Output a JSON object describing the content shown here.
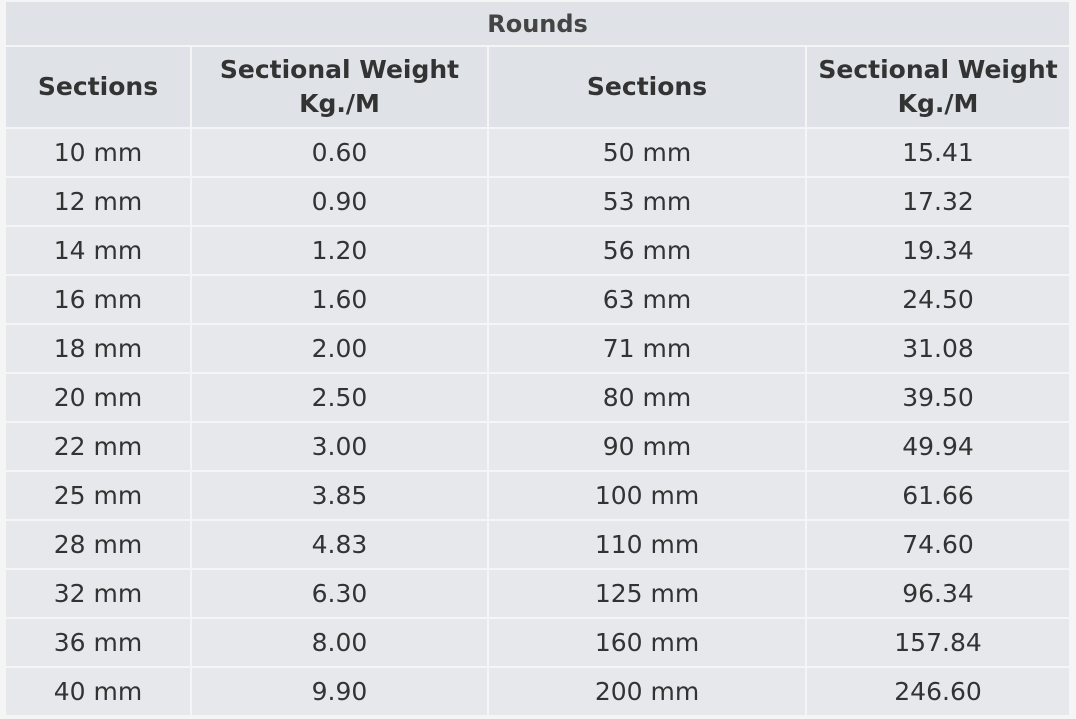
{
  "table": {
    "title": "Rounds",
    "headers": [
      {
        "line1": "Sections",
        "line2": ""
      },
      {
        "line1": "Sectional Weight",
        "line2": "Kg./M"
      },
      {
        "line1": "Sections",
        "line2": ""
      },
      {
        "line1": "Sectional Weight",
        "line2": "Kg./M"
      }
    ],
    "rows": [
      [
        "10 mm",
        "0.60",
        "50 mm",
        "15.41"
      ],
      [
        "12 mm",
        "0.90",
        "53 mm",
        "17.32"
      ],
      [
        "14 mm",
        "1.20",
        "56 mm",
        "19.34"
      ],
      [
        "16 mm",
        "1.60",
        "63 mm",
        "24.50"
      ],
      [
        "18 mm",
        "2.00",
        "71 mm",
        "31.08"
      ],
      [
        "20 mm",
        "2.50",
        "80 mm",
        "39.50"
      ],
      [
        "22 mm",
        "3.00",
        "90 mm",
        "49.94"
      ],
      [
        "25 mm",
        "3.85",
        "100 mm",
        "61.66"
      ],
      [
        "28 mm",
        "4.83",
        "110 mm",
        "74.60"
      ],
      [
        "32 mm",
        "6.30",
        "125 mm",
        "96.34"
      ],
      [
        "36 mm",
        "8.00",
        "160 mm",
        "157.84"
      ],
      [
        "40 mm",
        "9.90",
        "200 mm",
        "246.60"
      ]
    ]
  }
}
